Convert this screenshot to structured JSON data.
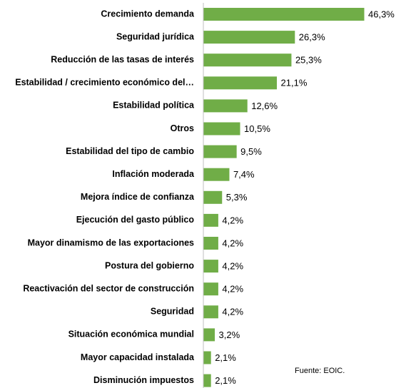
{
  "chart_data": {
    "type": "bar",
    "orientation": "horizontal",
    "color": "#70ad47",
    "categories": [
      "Crecimiento demanda",
      "Seguridad jurídica",
      "Reducción de las tasas de interés",
      "Estabilidad / crecimiento económico del…",
      "Estabilidad política",
      "Otros",
      "Estabilidad del tipo de cambio",
      "Inflación moderada",
      "Mejora índice de confianza",
      "Ejecución del gasto público",
      "Mayor dinamismo de las exportaciones",
      "Postura del gobierno",
      "Reactivación del sector de construcción",
      "Seguridad",
      "Situación económica mundial",
      "Mayor capacidad instalada",
      "Disminución impuestos"
    ],
    "values": [
      46.3,
      26.3,
      25.3,
      21.1,
      12.6,
      10.5,
      9.5,
      7.4,
      5.3,
      4.2,
      4.2,
      4.2,
      4.2,
      4.2,
      3.2,
      2.1,
      2.1
    ],
    "value_labels": [
      "46,3%",
      "26,3%",
      "25,3%",
      "21,1%",
      "12,6%",
      "10,5%",
      "9,5%",
      "7,4%",
      "5,3%",
      "4,2%",
      "4,2%",
      "4,2%",
      "4,2%",
      "4,2%",
      "3,2%",
      "2,1%",
      "2,1%"
    ],
    "source": "Fuente: EOIC."
  }
}
